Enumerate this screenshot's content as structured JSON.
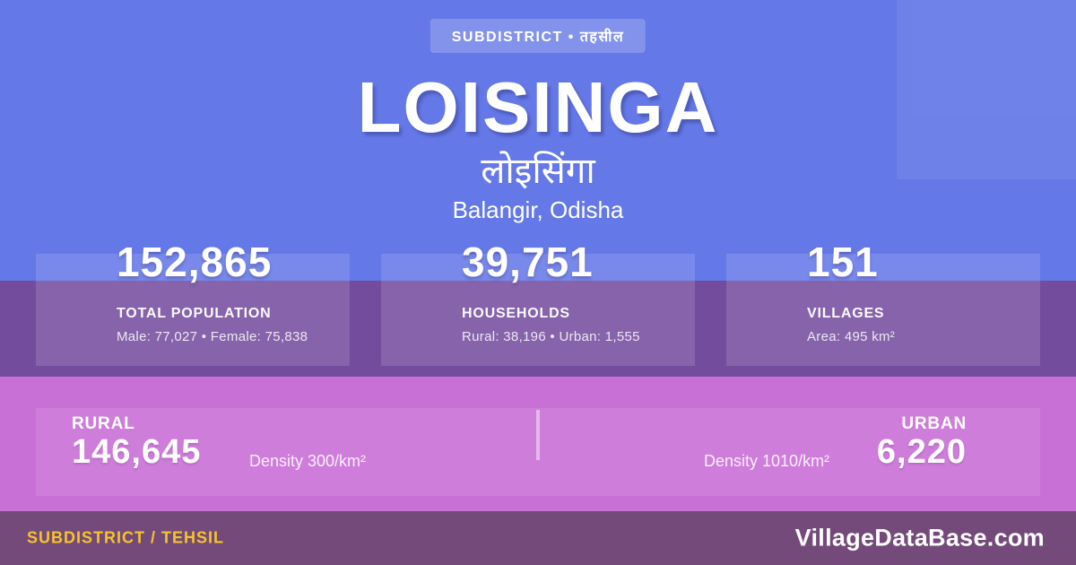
{
  "badge": {
    "label": "SUBDISTRICT • तहसील"
  },
  "header": {
    "title": "LOISINGA",
    "title_local": "लोइसिंगा",
    "location": "Balangir, Odisha"
  },
  "stats": [
    {
      "value": "152,865",
      "label": "TOTAL POPULATION",
      "detail": "Male: 77,027 • Female: 75,838"
    },
    {
      "value": "39,751",
      "label": "HOUSEHOLDS",
      "detail": "Rural: 38,196 • Urban: 1,555"
    },
    {
      "value": "151",
      "label": "VILLAGES",
      "detail": "Area: 495 km²"
    }
  ],
  "rural_urban": {
    "rural": {
      "label": "RURAL",
      "value": "146,645",
      "density": "Density 300/km²"
    },
    "urban": {
      "label": "URBAN",
      "value": "6,220",
      "density": "Density 1010/km²"
    }
  },
  "footer": {
    "left": "SUBDISTRICT / TEHSIL",
    "right": "VillageDataBase.com"
  },
  "colors": {
    "background": "#6478E8",
    "band_purple": "#744C9E",
    "band_pink": "#C970D6",
    "footer_bar": "#744A7A",
    "accent_yellow": "#F6C428",
    "text_white": "#FFFFFF"
  }
}
